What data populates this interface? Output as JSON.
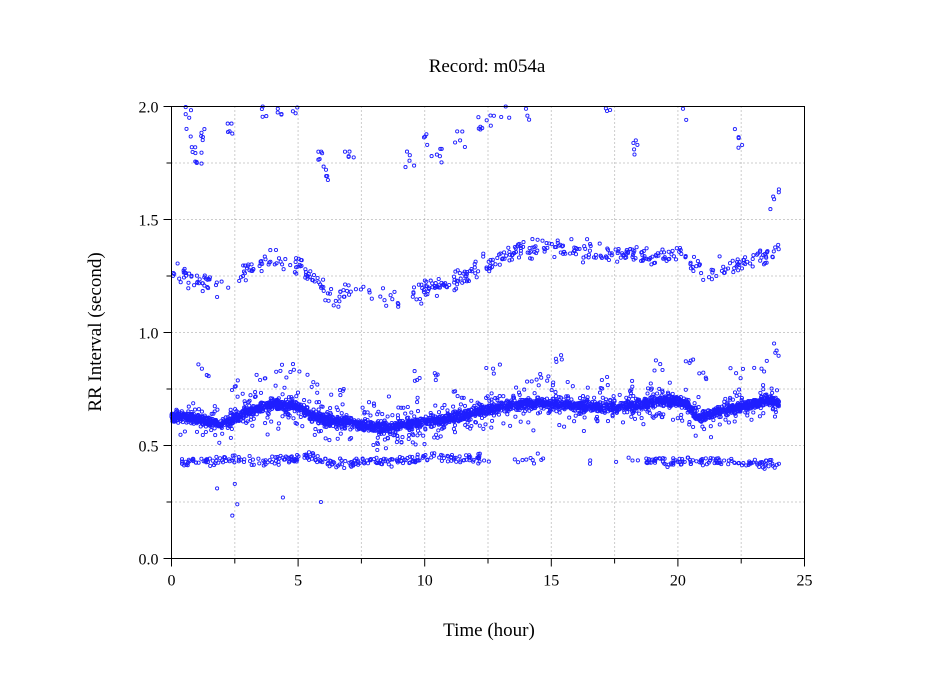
{
  "chart_data": {
    "type": "scatter",
    "title": "Record:  m054a",
    "xlabel": "Time (hour)",
    "ylabel": "RR Interval (second)",
    "xlim": [
      0,
      25
    ],
    "ylim": [
      0.0,
      2.0
    ],
    "x_ticks": [
      "0",
      "5",
      "10",
      "15",
      "20",
      "25"
    ],
    "y_ticks": [
      "0.0",
      "0.5",
      "1.0",
      "1.5",
      "2.0"
    ],
    "grid": true,
    "marker": "open-circle",
    "point_color": "#1f1fff",
    "series": [
      {
        "baseline": [
          [
            0.0,
            0.63
          ],
          [
            1.0,
            0.62
          ],
          [
            2.0,
            0.59
          ],
          [
            3.0,
            0.65
          ],
          [
            4.0,
            0.68
          ],
          [
            5.0,
            0.67
          ],
          [
            5.8,
            0.62
          ],
          [
            6.5,
            0.61
          ],
          [
            7.5,
            0.59
          ],
          [
            8.5,
            0.58
          ],
          [
            9.5,
            0.6
          ],
          [
            10.5,
            0.61
          ],
          [
            11.5,
            0.63
          ],
          [
            12.5,
            0.66
          ],
          [
            13.5,
            0.68
          ],
          [
            14.5,
            0.69
          ],
          [
            15.5,
            0.68
          ],
          [
            16.5,
            0.67
          ],
          [
            17.5,
            0.67
          ],
          [
            18.5,
            0.68
          ],
          [
            19.5,
            0.7
          ],
          [
            20.3,
            0.69
          ],
          [
            20.8,
            0.62
          ],
          [
            21.5,
            0.65
          ],
          [
            22.5,
            0.67
          ],
          [
            23.5,
            0.7
          ],
          [
            24.0,
            0.69
          ]
        ],
        "secondary_band": [
          [
            0.0,
            1.27
          ],
          [
            1.0,
            1.22
          ],
          [
            2.0,
            1.2
          ],
          [
            3.0,
            1.28
          ],
          [
            4.0,
            1.33
          ],
          [
            5.0,
            1.3
          ],
          [
            6.0,
            1.2
          ],
          [
            6.4,
            1.13
          ],
          [
            7.0,
            1.18
          ],
          [
            8.0,
            1.17
          ],
          [
            9.0,
            1.14
          ],
          [
            10.0,
            1.2
          ],
          [
            11.0,
            1.22
          ],
          [
            12.0,
            1.28
          ],
          [
            13.0,
            1.33
          ],
          [
            14.0,
            1.37
          ],
          [
            15.0,
            1.38
          ],
          [
            16.0,
            1.36
          ],
          [
            17.0,
            1.35
          ],
          [
            18.0,
            1.35
          ],
          [
            19.0,
            1.34
          ],
          [
            20.0,
            1.36
          ],
          [
            21.0,
            1.27
          ],
          [
            22.0,
            1.28
          ],
          [
            23.0,
            1.33
          ],
          [
            24.0,
            1.36
          ]
        ],
        "lower_band": [
          [
            0.5,
            0.43
          ],
          [
            1.5,
            0.43
          ],
          [
            2.5,
            0.44
          ],
          [
            3.5,
            0.43
          ],
          [
            4.5,
            0.44
          ],
          [
            5.5,
            0.45
          ],
          [
            6.5,
            0.41
          ],
          [
            7.5,
            0.43
          ],
          [
            8.5,
            0.43
          ],
          [
            9.5,
            0.44
          ],
          [
            10.5,
            0.45
          ],
          [
            11.5,
            0.44
          ],
          [
            12.0,
            0.44
          ],
          [
            19.0,
            0.43
          ],
          [
            21.5,
            0.43
          ],
          [
            22.5,
            0.42
          ]
        ],
        "upper_outliers": [
          [
            0.7,
            1.95
          ],
          [
            0.8,
            1.82
          ],
          [
            1.0,
            1.75
          ],
          [
            1.3,
            1.9
          ],
          [
            2.4,
            1.88
          ],
          [
            3.6,
            2.0
          ],
          [
            4.2,
            1.99
          ],
          [
            4.9,
            1.97
          ],
          [
            5.8,
            1.8
          ],
          [
            6.1,
            1.72
          ],
          [
            7.0,
            1.78
          ],
          [
            9.4,
            1.76
          ],
          [
            10.1,
            1.83
          ],
          [
            10.6,
            1.78
          ],
          [
            11.4,
            1.85
          ],
          [
            12.2,
            1.91
          ],
          [
            12.6,
            1.96
          ],
          [
            13.2,
            2.0
          ],
          [
            14.0,
            1.99
          ],
          [
            17.2,
            1.98
          ],
          [
            18.4,
            1.83
          ],
          [
            20.2,
            1.99
          ],
          [
            22.4,
            1.86
          ],
          [
            23.8,
            1.59
          ]
        ],
        "scattered_mid": [
          [
            1.2,
            0.84
          ],
          [
            2.5,
            0.76
          ],
          [
            3.5,
            0.79
          ],
          [
            4.3,
            0.83
          ],
          [
            4.8,
            0.86
          ],
          [
            5.6,
            0.78
          ],
          [
            6.8,
            0.75
          ],
          [
            9.7,
            0.79
          ],
          [
            10.4,
            0.82
          ],
          [
            11.2,
            0.74
          ],
          [
            12.7,
            0.84
          ],
          [
            13.5,
            0.72
          ],
          [
            14.6,
            0.8
          ],
          [
            15.2,
            0.87
          ],
          [
            17.0,
            0.79
          ],
          [
            18.2,
            0.76
          ],
          [
            19.3,
            0.86
          ],
          [
            20.6,
            0.88
          ],
          [
            21.1,
            0.8
          ],
          [
            22.3,
            0.82
          ],
          [
            23.3,
            0.84
          ],
          [
            23.9,
            0.92
          ]
        ],
        "low_outliers": [
          [
            2.5,
            0.33
          ],
          [
            2.4,
            0.19
          ],
          [
            4.4,
            0.27
          ],
          [
            5.9,
            0.25
          ],
          [
            2.6,
            0.24
          ],
          [
            1.8,
            0.31
          ]
        ]
      }
    ]
  }
}
